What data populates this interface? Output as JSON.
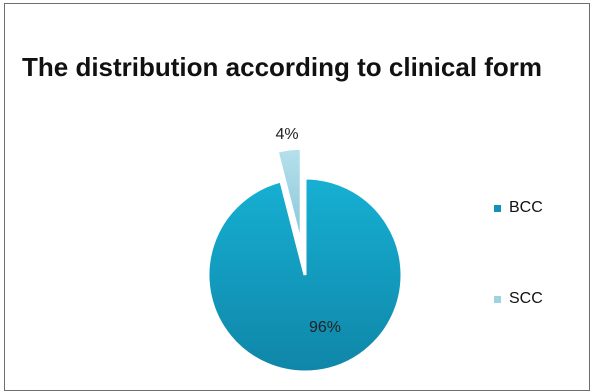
{
  "chart_data": {
    "type": "pie",
    "title": "The distribution according to clinical form",
    "categories": [
      "BCC",
      "SCC"
    ],
    "values": [
      96,
      4
    ],
    "labels": [
      "96%",
      "4%"
    ],
    "colors": [
      "#1193b8",
      "#9fd3e3"
    ],
    "legend_position": "right",
    "exploded_slice": "SCC"
  }
}
